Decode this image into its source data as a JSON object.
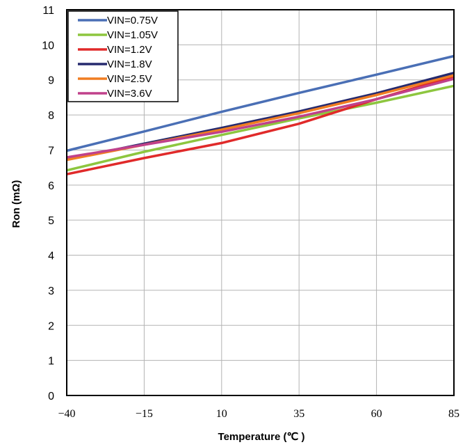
{
  "chart_data": {
    "type": "line",
    "title": "",
    "xlabel": "Temperature (℃ )",
    "ylabel": "Ron  (mΩ)",
    "xlim": [
      -40,
      85
    ],
    "ylim": [
      0,
      11
    ],
    "x_ticks": [
      -40,
      -15,
      10,
      35,
      60,
      85
    ],
    "y_ticks": [
      0,
      1,
      2,
      3,
      4,
      5,
      6,
      7,
      8,
      9,
      10,
      11
    ],
    "x_tick_labels": [
      "−40",
      "−15",
      "10",
      "35",
      "60",
      "85"
    ],
    "y_tick_labels": [
      "0",
      "1",
      "2",
      "3",
      "4",
      "5",
      "6",
      "7",
      "8",
      "9",
      "10",
      "11"
    ],
    "grid": true,
    "legend_position": "top-left",
    "x": [
      -40,
      -15,
      10,
      35,
      60,
      85
    ],
    "series": [
      {
        "name": "VIN=0.75V",
        "color": "#4a6fb5",
        "values": [
          6.98,
          7.53,
          8.09,
          8.63,
          9.15,
          9.68
        ]
      },
      {
        "name": "VIN=1.05V",
        "color": "#8dc63f",
        "values": [
          6.42,
          6.95,
          7.43,
          7.9,
          8.35,
          8.83
        ]
      },
      {
        "name": "VIN=1.2V",
        "color": "#e02a2a",
        "values": [
          6.31,
          6.77,
          7.2,
          7.75,
          8.45,
          9.1
        ]
      },
      {
        "name": "VIN=1.8V",
        "color": "#262a6e",
        "values": [
          6.73,
          7.18,
          7.63,
          8.1,
          8.62,
          9.2
        ]
      },
      {
        "name": "VIN=2.5V",
        "color": "#f07d22",
        "values": [
          6.72,
          7.15,
          7.58,
          8.05,
          8.57,
          9.13
        ]
      },
      {
        "name": "VIN=3.6V",
        "color": "#c0418b",
        "values": [
          6.79,
          7.15,
          7.52,
          7.95,
          8.45,
          9.03
        ]
      }
    ]
  }
}
